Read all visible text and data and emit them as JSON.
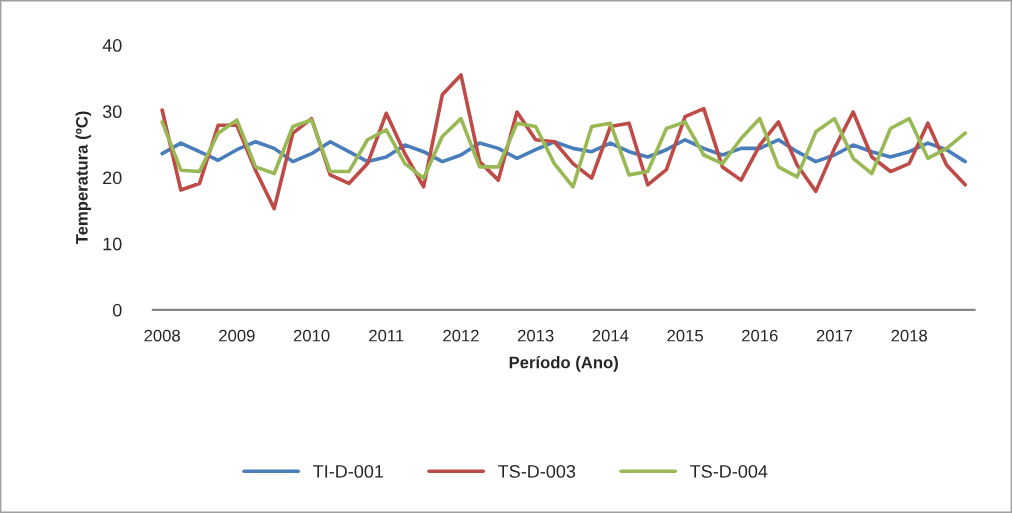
{
  "chart_data": {
    "type": "line",
    "xlabel": "Período (Ano)",
    "ylabel": "Temperatura (ºC)",
    "categories": [
      "2008",
      null,
      null,
      null,
      "2009",
      null,
      null,
      null,
      "2010",
      null,
      null,
      null,
      "2011",
      null,
      null,
      null,
      "2012",
      null,
      null,
      null,
      "2013",
      null,
      null,
      null,
      "2014",
      null,
      null,
      null,
      "2015",
      null,
      null,
      null,
      "2016",
      null,
      null,
      null,
      "2017",
      null,
      null,
      null,
      "2018",
      null,
      null,
      null
    ],
    "series": [
      {
        "name": "TI-D-001",
        "color": "#4a7ebb",
        "values": [
          23.6,
          25.2,
          23.9,
          22.6,
          24.2,
          25.4,
          24.4,
          22.4,
          23.6,
          25.4,
          23.9,
          22.4,
          23.1,
          24.9,
          23.9,
          22.4,
          23.4,
          25.2,
          24.4,
          22.9,
          24.2,
          25.4,
          24.4,
          23.9,
          25.2,
          23.9,
          23.1,
          24.2,
          25.7,
          24.4,
          23.4,
          24.4,
          24.4,
          25.7,
          23.9,
          22.4,
          23.4,
          24.9,
          23.9,
          23.1,
          23.9,
          25.2,
          24.2,
          22.4
        ]
      },
      {
        "name": "TS-D-003",
        "color": "#be4b48",
        "values": [
          30.2,
          18.1,
          19.1,
          27.9,
          27.9,
          21.1,
          15.3,
          26.7,
          28.9,
          20.4,
          19.1,
          22.1,
          29.7,
          23.6,
          18.6,
          32.5,
          35.5,
          22.4,
          19.6,
          29.9,
          25.7,
          25.4,
          22.1,
          19.9,
          27.7,
          28.2,
          18.9,
          21.2,
          29.2,
          30.4,
          21.6,
          19.6,
          24.9,
          28.4,
          21.9,
          17.9,
          24.4,
          29.9,
          23.1,
          20.9,
          22.1,
          28.2,
          21.9,
          18.9
        ]
      },
      {
        "name": "TS-D-004",
        "color": "#98b954",
        "values": [
          28.4,
          21.1,
          20.9,
          26.7,
          28.7,
          21.6,
          20.6,
          27.7,
          28.7,
          20.9,
          20.9,
          25.7,
          27.2,
          22.1,
          19.9,
          26.2,
          28.9,
          21.6,
          21.6,
          28.2,
          27.7,
          22.1,
          18.6,
          27.7,
          28.2,
          20.4,
          20.9,
          27.4,
          28.4,
          23.4,
          22.1,
          25.9,
          28.9,
          21.6,
          20.1,
          26.9,
          28.9,
          22.9,
          20.6,
          27.4,
          28.9,
          22.9,
          24.4,
          26.7
        ]
      }
    ],
    "ylim": [
      0,
      40
    ],
    "yticks": [
      0,
      10,
      20,
      30,
      40
    ],
    "grid": false,
    "legend": "bottom",
    "marker": "none",
    "line_style": "solid"
  }
}
